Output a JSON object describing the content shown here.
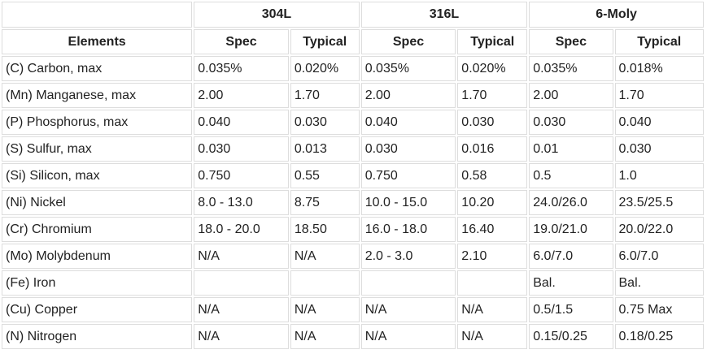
{
  "table": {
    "groups": [
      "304L",
      "316L",
      "6-Moly"
    ],
    "columns": [
      "Elements",
      "Spec",
      "Typical",
      "Spec",
      "Typical",
      "Spec",
      "Typical"
    ],
    "rows": [
      [
        "(C) Carbon, max",
        "0.035%",
        "0.020%",
        "0.035%",
        "0.020%",
        "0.035%",
        "0.018%"
      ],
      [
        "(Mn) Manganese, max",
        "2.00",
        "1.70",
        "2.00",
        "1.70",
        "2.00",
        "1.70"
      ],
      [
        "(P) Phosphorus, max",
        "0.040",
        "0.030",
        "0.040",
        "0.030",
        "0.030",
        "0.040"
      ],
      [
        "(S) Sulfur, max",
        "0.030",
        "0.013",
        "0.030",
        "0.016",
        "0.01",
        "0.030"
      ],
      [
        "(Si) Silicon, max",
        "0.750",
        "0.55",
        "0.750",
        "0.58",
        "0.5",
        "1.0"
      ],
      [
        "(Ni) Nickel",
        "8.0 - 13.0",
        "8.75",
        "10.0 - 15.0",
        "10.20",
        "24.0/26.0",
        "23.5/25.5"
      ],
      [
        "(Cr) Chromium",
        "18.0 - 20.0",
        "18.50",
        "16.0 - 18.0",
        "16.40",
        "19.0/21.0",
        "20.0/22.0"
      ],
      [
        "(Mo) Molybdenum",
        "N/A",
        "N/A",
        "2.0 - 3.0",
        "2.10",
        "6.0/7.0",
        "6.0/7.0"
      ],
      [
        "(Fe) Iron",
        "",
        "",
        "",
        "",
        "Bal.",
        "Bal."
      ],
      [
        "(Cu) Copper",
        "N/A",
        "N/A",
        "N/A",
        "N/A",
        "0.5/1.5",
        "0.75 Max"
      ],
      [
        "(N) Nitrogen",
        "N/A",
        "N/A",
        "N/A",
        "N/A",
        "0.15/0.25",
        "0.18/0.25"
      ]
    ]
  }
}
